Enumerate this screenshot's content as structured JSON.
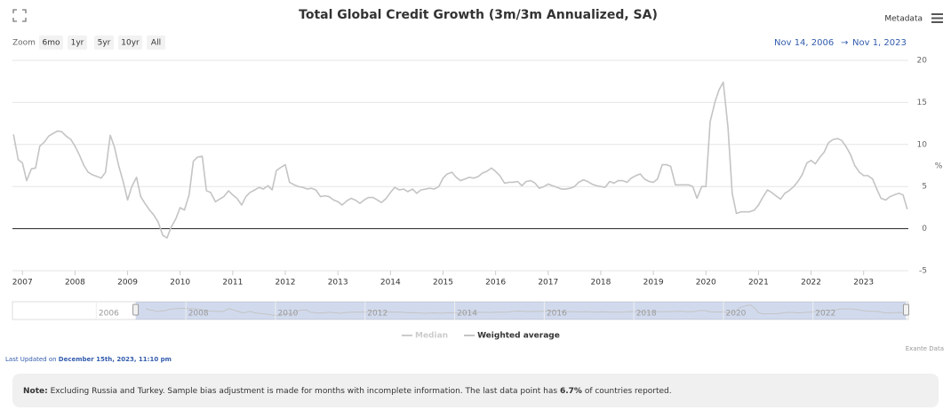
{
  "chart_data": {
    "type": "line",
    "title": "Total Global Credit Growth (3m/3m Annualized, SA)",
    "y_unit": "%",
    "x": [
      2006.83,
      2006.92,
      2007,
      2007.08,
      2007.17,
      2007.25,
      2007.33,
      2007.42,
      2007.5,
      2007.58,
      2007.67,
      2007.75,
      2007.83,
      2007.92,
      2008,
      2008.08,
      2008.17,
      2008.25,
      2008.33,
      2008.42,
      2008.5,
      2008.58,
      2008.67,
      2008.75,
      2008.83,
      2008.92,
      2009,
      2009.08,
      2009.17,
      2009.25,
      2009.33,
      2009.42,
      2009.5,
      2009.58,
      2009.67,
      2009.75,
      2009.83,
      2009.92,
      2010,
      2010.08,
      2010.17,
      2010.25,
      2010.33,
      2010.42,
      2010.5,
      2010.58,
      2010.67,
      2010.75,
      2010.83,
      2010.92,
      2011,
      2011.08,
      2011.17,
      2011.25,
      2011.33,
      2011.42,
      2011.5,
      2011.58,
      2011.67,
      2011.75,
      2011.83,
      2011.92,
      2012,
      2012.08,
      2012.17,
      2012.25,
      2012.33,
      2012.42,
      2012.5,
      2012.58,
      2012.67,
      2012.75,
      2012.83,
      2012.92,
      2013,
      2013.08,
      2013.17,
      2013.25,
      2013.33,
      2013.42,
      2013.5,
      2013.58,
      2013.67,
      2013.75,
      2013.83,
      2013.92,
      2014,
      2014.08,
      2014.17,
      2014.25,
      2014.33,
      2014.42,
      2014.5,
      2014.58,
      2014.67,
      2014.75,
      2014.83,
      2014.92,
      2015,
      2015.08,
      2015.17,
      2015.25,
      2015.33,
      2015.42,
      2015.5,
      2015.58,
      2015.67,
      2015.75,
      2015.83,
      2015.92,
      2016,
      2016.08,
      2016.17,
      2016.25,
      2016.33,
      2016.42,
      2016.5,
      2016.58,
      2016.67,
      2016.75,
      2016.83,
      2016.92,
      2017,
      2017.08,
      2017.17,
      2017.25,
      2017.33,
      2017.42,
      2017.5,
      2017.58,
      2017.67,
      2017.75,
      2017.83,
      2017.92,
      2018,
      2018.08,
      2018.17,
      2018.25,
      2018.33,
      2018.42,
      2018.5,
      2018.58,
      2018.67,
      2018.75,
      2018.83,
      2018.92,
      2019,
      2019.08,
      2019.17,
      2019.25,
      2019.33,
      2019.42,
      2019.5,
      2019.58,
      2019.67,
      2019.75,
      2019.83,
      2019.92,
      2020,
      2020.08,
      2020.17,
      2020.25,
      2020.33,
      2020.42,
      2020.5,
      2020.58,
      2020.67,
      2020.75,
      2020.83,
      2020.92,
      2021,
      2021.08,
      2021.17,
      2021.25,
      2021.33,
      2021.42,
      2021.5,
      2021.58,
      2021.67,
      2021.75,
      2021.83,
      2021.92,
      2022,
      2022.08,
      2022.17,
      2022.25,
      2022.33,
      2022.42,
      2022.5,
      2022.58,
      2022.67,
      2022.75,
      2022.83,
      2022.92,
      2023,
      2023.08,
      2023.17,
      2023.25,
      2023.33,
      2023.42,
      2023.5,
      2023.58,
      2023.67,
      2023.75,
      2023.83
    ],
    "series": [
      {
        "name": "Weighted average",
        "color": "#c4c4c4",
        "values": [
          11.2,
          8.2,
          7.8,
          5.7,
          7.1,
          7.2,
          9.8,
          10.3,
          11.0,
          11.3,
          11.6,
          11.5,
          11.0,
          10.6,
          9.8,
          8.8,
          7.5,
          6.7,
          6.4,
          6.2,
          6.0,
          6.7,
          11.1,
          9.7,
          7.5,
          5.5,
          3.4,
          5.0,
          6.1,
          3.8,
          3.0,
          2.2,
          1.6,
          0.8,
          -0.8,
          -1.1,
          0.2,
          1.2,
          2.5,
          2.2,
          4.0,
          8.0,
          8.5,
          8.6,
          4.5,
          4.3,
          3.2,
          3.5,
          3.8,
          4.5,
          4.0,
          3.6,
          2.8,
          3.8,
          4.3,
          4.6,
          4.9,
          4.7,
          5.1,
          4.6,
          6.9,
          7.3,
          7.6,
          5.5,
          5.2,
          5.0,
          4.9,
          4.7,
          4.8,
          4.6,
          3.8,
          3.9,
          3.8,
          3.4,
          3.2,
          2.8,
          3.3,
          3.6,
          3.4,
          3.0,
          3.4,
          3.7,
          3.7,
          3.4,
          3.1,
          3.6,
          4.3,
          4.9,
          4.6,
          4.7,
          4.4,
          4.7,
          4.2,
          4.6,
          4.7,
          4.8,
          4.7,
          5.0,
          6.0,
          6.5,
          6.7,
          6.1,
          5.7,
          5.9,
          6.1,
          6.0,
          6.2,
          6.6,
          6.8,
          7.2,
          6.8,
          6.3,
          5.4,
          5.5,
          5.5,
          5.6,
          5.1,
          5.6,
          5.7,
          5.4,
          4.8,
          5.0,
          5.3,
          5.1,
          4.9,
          4.7,
          4.7,
          4.8,
          5.0,
          5.5,
          5.8,
          5.6,
          5.3,
          5.1,
          5.0,
          4.9,
          5.6,
          5.4,
          5.7,
          5.7,
          5.5,
          6.0,
          6.3,
          6.5,
          5.9,
          5.6,
          5.5,
          5.9,
          7.6,
          7.6,
          7.4,
          5.2,
          5.2,
          5.2,
          5.2,
          5.0,
          3.6,
          5.0,
          5.0,
          12.7,
          15.0,
          16.5,
          17.4,
          12.0,
          4.2,
          1.8,
          2.0,
          2.0,
          2.0,
          2.2,
          2.8,
          3.7,
          4.6,
          4.3,
          3.9,
          3.5,
          4.2,
          4.5,
          5.0,
          5.6,
          6.4,
          7.8,
          8.1,
          7.7,
          8.5,
          9.1,
          10.2,
          10.6,
          10.7,
          10.5,
          9.7,
          8.8,
          7.5,
          6.7,
          6.3,
          6.3,
          5.9,
          4.7,
          3.6,
          3.4,
          3.8,
          4.0,
          4.2,
          4.0,
          2.3
        ]
      }
    ],
    "legend_hidden": [
      "Median"
    ],
    "xlim": [
      2006.81,
      2023.85
    ],
    "xticks": [
      2007,
      2008,
      2009,
      2010,
      2011,
      2012,
      2013,
      2014,
      2015,
      2016,
      2017,
      2018,
      2019,
      2020,
      2021,
      2022,
      2023
    ],
    "ylim": [
      -5,
      20
    ],
    "yticks": [
      20,
      15,
      10,
      5,
      0,
      -5
    ],
    "grid": true,
    "navigator": {
      "xlim": [
        2003.85,
        2023.85
      ],
      "xticks": [
        2006,
        2008,
        2010,
        2012,
        2014,
        2016,
        2018,
        2020,
        2022
      ],
      "selection": [
        2006.6,
        2023.8
      ]
    }
  },
  "toolbar": {
    "zoom_label": "Zoom",
    "zoom_buttons": [
      "6mo",
      "1yr",
      "5yr",
      "10yr",
      "All"
    ],
    "range_from": "Nov 14, 2006",
    "range_separator": "→",
    "range_to": "Nov 1, 2023",
    "metadata": "Metadata"
  },
  "footer": {
    "credit": "Exante Data",
    "updated_label": "Last Updated on",
    "updated_date": "December 15th, 2023, 11:10 pm",
    "note_label": "Note:",
    "note_text": "Excluding Russia and Turkey. Sample bias adjustment is made for months with incomplete information. The last data point has",
    "note_value": "6.7%",
    "note_tail": "of countries reported."
  }
}
